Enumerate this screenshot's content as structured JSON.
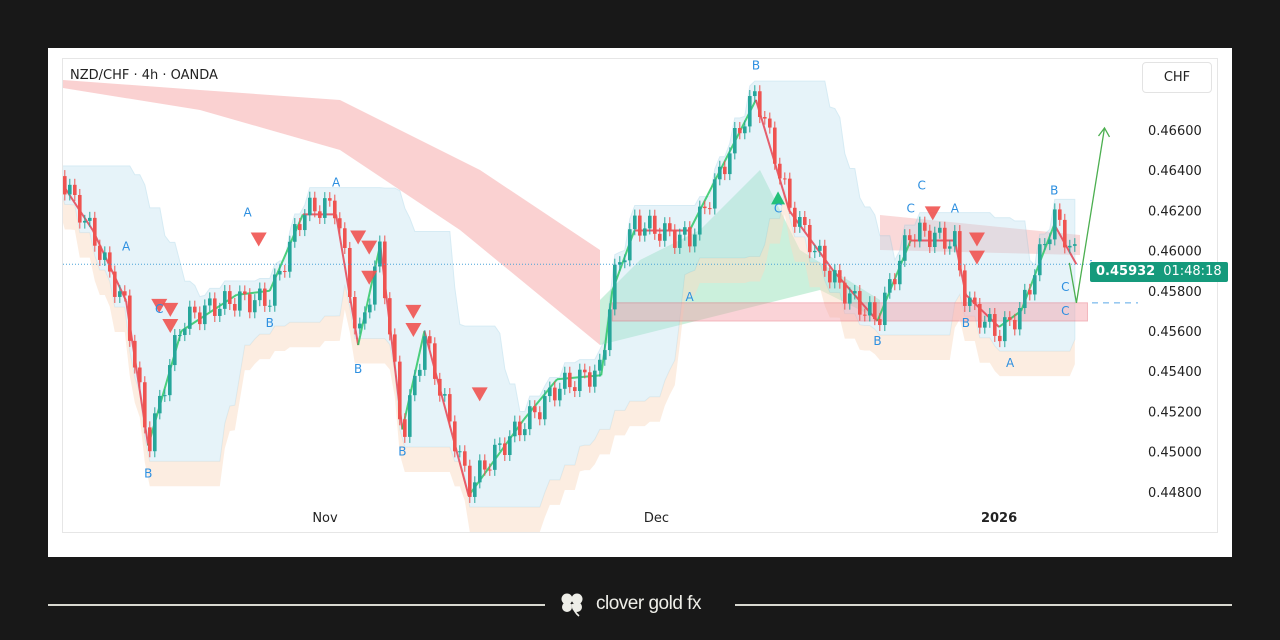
{
  "header": {
    "symbol_title": "NZD/CHF · 4h · OANDA",
    "currency_button": "CHF"
  },
  "price_tag": {
    "price": "0.45932",
    "countdown": "01:48:18",
    "color": "#159a7c"
  },
  "brand": {
    "name": "clover gold fx",
    "icon": "clover-icon"
  },
  "chart_data": {
    "type": "candlestick",
    "title": "NZD/CHF · 4h · OANDA",
    "y_ticks": [
      "0.46600",
      "0.46400",
      "0.46200",
      "0.46000",
      "0.45800",
      "0.45600",
      "0.45400",
      "0.45200",
      "0.45000",
      "0.44800"
    ],
    "ylim": [
      0.447,
      0.469
    ],
    "x_ticks": [
      {
        "label": "Nov",
        "date": "2025-11-01"
      },
      {
        "label": "Dec",
        "date": "2025-12-01"
      },
      {
        "label": "2026",
        "date": "2026-01-01"
      }
    ],
    "price_path": [
      [
        "2025-10-08",
        0.4635
      ],
      [
        "2025-10-11",
        0.461
      ],
      [
        "2025-10-14",
        0.4575
      ],
      [
        "2025-10-16",
        0.4503
      ],
      [
        "2025-10-19",
        0.456
      ],
      [
        "2025-10-24",
        0.4578
      ],
      [
        "2025-10-27",
        0.458
      ],
      [
        "2025-10-30",
        0.4618
      ],
      [
        "2025-11-02",
        0.4618
      ],
      [
        "2025-11-04",
        0.4553
      ],
      [
        "2025-11-06",
        0.4603
      ],
      [
        "2025-11-08",
        0.4511
      ],
      [
        "2025-11-10",
        0.456
      ],
      [
        "2025-11-14",
        0.4478
      ],
      [
        "2025-11-19",
        0.4516
      ],
      [
        "2025-11-22",
        0.4536
      ],
      [
        "2025-11-26",
        0.4538
      ],
      [
        "2025-11-27",
        0.458
      ],
      [
        "2025-11-29",
        0.461
      ],
      [
        "2025-12-04",
        0.461
      ],
      [
        "2025-12-10",
        0.4675
      ],
      [
        "2025-12-13",
        0.462
      ],
      [
        "2025-12-17",
        0.459
      ],
      [
        "2025-12-21",
        0.4565
      ],
      [
        "2025-12-24",
        0.4605
      ],
      [
        "2025-12-28",
        0.4605
      ],
      [
        "2025-12-29",
        0.4578
      ],
      [
        "2026-01-01",
        0.4562
      ],
      [
        "2026-01-03",
        0.457
      ],
      [
        "2026-01-06",
        0.4613
      ],
      [
        "2026-01-08",
        0.45932
      ]
    ],
    "current_price": 0.45932,
    "zone": {
      "from": "2025-11-27",
      "to": "2026-01-09",
      "low": 0.4565,
      "high": 0.4574,
      "color": "#f4a0a8"
    },
    "projection": {
      "from": [
        "2026-01-08",
        0.4574
      ],
      "to": [
        "2026-01-10",
        0.4661
      ],
      "color": "#4caf50"
    },
    "wave_labels": [
      {
        "t": "A",
        "d": "2025-10-14",
        "p": 0.46
      },
      {
        "t": "B",
        "d": "2025-10-16",
        "p": 0.4487
      },
      {
        "t": "C",
        "d": "2025-10-17",
        "p": 0.4569
      },
      {
        "t": "A",
        "d": "2025-10-25",
        "p": 0.4617
      },
      {
        "t": "B",
        "d": "2025-10-27",
        "p": 0.4562
      },
      {
        "t": "A",
        "d": "2025-11-02",
        "p": 0.4632
      },
      {
        "t": "B",
        "d": "2025-11-04",
        "p": 0.4539
      },
      {
        "t": "B",
        "d": "2025-11-08",
        "p": 0.4498
      },
      {
        "t": "A",
        "d": "2025-12-04",
        "p": 0.4575
      },
      {
        "t": "B",
        "d": "2025-12-10",
        "p": 0.469
      },
      {
        "t": "C",
        "d": "2025-12-12",
        "p": 0.4619
      },
      {
        "t": "B",
        "d": "2025-12-21",
        "p": 0.4553
      },
      {
        "t": "C",
        "d": "2025-12-24",
        "p": 0.4619
      },
      {
        "t": "C",
        "d": "2025-12-25",
        "p": 0.4623
      },
      {
        "t": "A",
        "d": "2025-12-28",
        "p": 0.4619
      },
      {
        "t": "B",
        "d": "2025-12-29",
        "p": 0.4562
      },
      {
        "t": "A",
        "d": "2026-01-02",
        "p": 0.4542
      },
      {
        "t": "B",
        "d": "2026-01-06",
        "p": 0.4628
      },
      {
        "t": "C",
        "d": "2026-01-07",
        "p": 0.458
      },
      {
        "t": "C",
        "d": "2026-01-07",
        "p": 0.4568
      }
    ],
    "sell_signals": [
      [
        "2025-10-17",
        0.4572
      ],
      [
        "2025-10-18",
        0.457
      ],
      [
        "2025-10-18",
        0.4562
      ],
      [
        "2025-10-26",
        0.4605
      ],
      [
        "2025-11-04",
        0.4606
      ],
      [
        "2025-11-05",
        0.4601
      ],
      [
        "2025-11-05",
        0.4586
      ],
      [
        "2025-11-09",
        0.4569
      ],
      [
        "2025-11-09",
        0.456
      ],
      [
        "2025-11-15",
        0.4528
      ],
      [
        "2025-12-26",
        0.4618
      ],
      [
        "2025-12-30",
        0.4605
      ],
      [
        "2025-12-30",
        0.4596
      ]
    ],
    "buy_signals": [
      [
        "2025-12-12",
        0.4626
      ]
    ],
    "colors": {
      "up": "#26a69a",
      "down": "#ef5350",
      "wave_label": "#2d8fe0",
      "bear_cloud": "#f6b3b3",
      "bull_cloud": "#a8e6c4",
      "band": "#b9dff0"
    }
  }
}
